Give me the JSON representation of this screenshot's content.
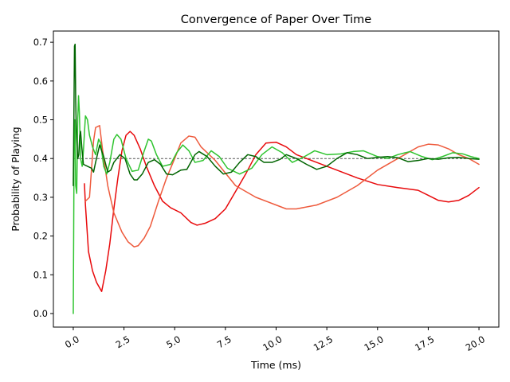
{
  "chart_data": {
    "type": "line",
    "title": "Convergence of Paper Over Time",
    "xlabel": "Time (ms)",
    "ylabel": "Probability of Playing",
    "xlim": [
      -0.98,
      20.98
    ],
    "ylim": [
      -0.035,
      0.729
    ],
    "x_ticks": [
      0.0,
      2.5,
      5.0,
      7.5,
      10.0,
      12.5,
      15.0,
      17.5,
      20.0
    ],
    "x_tick_labels": [
      "0.0",
      "2.5",
      "5.0",
      "7.5",
      "10.0",
      "12.5",
      "15.0",
      "17.5",
      "20.0"
    ],
    "y_ticks": [
      0.0,
      0.1,
      0.2,
      0.3,
      0.4,
      0.5,
      0.6,
      0.7
    ],
    "y_tick_labels": [
      "0.0",
      "0.1",
      "0.2",
      "0.3",
      "0.4",
      "0.5",
      "0.6",
      "0.7"
    ],
    "grid": false,
    "legend": false,
    "reference_line": {
      "y": 0.4,
      "color": "#555555",
      "style": "dashed"
    },
    "series": [
      {
        "color": "#e8090b",
        "points": [
          [
            0.55,
            0.335
          ],
          [
            0.6,
            0.28
          ],
          [
            0.75,
            0.16
          ],
          [
            0.95,
            0.11
          ],
          [
            1.15,
            0.08
          ],
          [
            1.4,
            0.057
          ],
          [
            1.6,
            0.11
          ],
          [
            1.8,
            0.18
          ],
          [
            2.0,
            0.27
          ],
          [
            2.2,
            0.35
          ],
          [
            2.4,
            0.42
          ],
          [
            2.6,
            0.46
          ],
          [
            2.8,
            0.47
          ],
          [
            3.0,
            0.46
          ],
          [
            3.3,
            0.425
          ],
          [
            3.6,
            0.38
          ],
          [
            4.0,
            0.33
          ],
          [
            4.4,
            0.29
          ],
          [
            4.8,
            0.273
          ],
          [
            5.3,
            0.26
          ],
          [
            5.8,
            0.235
          ],
          [
            6.1,
            0.228
          ],
          [
            6.5,
            0.233
          ],
          [
            7.0,
            0.245
          ],
          [
            7.5,
            0.27
          ],
          [
            8.0,
            0.315
          ],
          [
            8.5,
            0.36
          ],
          [
            9.0,
            0.41
          ],
          [
            9.5,
            0.44
          ],
          [
            10.0,
            0.442
          ],
          [
            10.5,
            0.43
          ],
          [
            11.0,
            0.41
          ],
          [
            12.0,
            0.39
          ],
          [
            13.0,
            0.37
          ],
          [
            14.0,
            0.35
          ],
          [
            15.0,
            0.333
          ],
          [
            16.0,
            0.325
          ],
          [
            17.0,
            0.318
          ],
          [
            17.5,
            0.305
          ],
          [
            18.0,
            0.292
          ],
          [
            18.5,
            0.288
          ],
          [
            19.0,
            0.292
          ],
          [
            19.5,
            0.305
          ],
          [
            20.0,
            0.325
          ]
        ]
      },
      {
        "color": "#ee5a3c",
        "points": [
          [
            0.6,
            0.29
          ],
          [
            0.8,
            0.3
          ],
          [
            1.0,
            0.445
          ],
          [
            1.1,
            0.48
          ],
          [
            1.3,
            0.485
          ],
          [
            1.45,
            0.42
          ],
          [
            1.7,
            0.33
          ],
          [
            2.0,
            0.26
          ],
          [
            2.4,
            0.21
          ],
          [
            2.7,
            0.185
          ],
          [
            3.0,
            0.172
          ],
          [
            3.2,
            0.175
          ],
          [
            3.5,
            0.195
          ],
          [
            3.8,
            0.225
          ],
          [
            4.2,
            0.29
          ],
          [
            4.6,
            0.35
          ],
          [
            5.0,
            0.4
          ],
          [
            5.3,
            0.44
          ],
          [
            5.7,
            0.458
          ],
          [
            6.0,
            0.455
          ],
          [
            6.3,
            0.43
          ],
          [
            7.0,
            0.395
          ],
          [
            8.0,
            0.33
          ],
          [
            9.0,
            0.3
          ],
          [
            10.0,
            0.28
          ],
          [
            10.5,
            0.27
          ],
          [
            11.0,
            0.27
          ],
          [
            12.0,
            0.28
          ],
          [
            13.0,
            0.3
          ],
          [
            14.0,
            0.33
          ],
          [
            15.0,
            0.37
          ],
          [
            16.0,
            0.4
          ],
          [
            17.0,
            0.43
          ],
          [
            17.5,
            0.437
          ],
          [
            18.0,
            0.435
          ],
          [
            18.5,
            0.425
          ],
          [
            19.0,
            0.41
          ],
          [
            19.5,
            0.4
          ],
          [
            20.0,
            0.385
          ]
        ]
      },
      {
        "color": "#2fc42f",
        "points": [
          [
            0.0,
            0.0
          ],
          [
            0.02,
            0.2
          ],
          [
            0.04,
            0.43
          ],
          [
            0.08,
            0.5
          ],
          [
            0.12,
            0.33
          ],
          [
            0.17,
            0.31
          ],
          [
            0.22,
            0.5
          ],
          [
            0.26,
            0.562
          ],
          [
            0.3,
            0.52
          ],
          [
            0.36,
            0.4
          ],
          [
            0.44,
            0.38
          ],
          [
            0.5,
            0.42
          ],
          [
            0.6,
            0.51
          ],
          [
            0.7,
            0.5
          ],
          [
            0.8,
            0.46
          ],
          [
            0.95,
            0.43
          ],
          [
            1.1,
            0.41
          ],
          [
            1.25,
            0.45
          ],
          [
            1.35,
            0.44
          ],
          [
            1.5,
            0.38
          ],
          [
            1.65,
            0.36
          ],
          [
            1.8,
            0.39
          ],
          [
            2.0,
            0.45
          ],
          [
            2.15,
            0.462
          ],
          [
            2.35,
            0.45
          ],
          [
            2.6,
            0.4
          ],
          [
            2.9,
            0.367
          ],
          [
            3.2,
            0.37
          ],
          [
            3.5,
            0.42
          ],
          [
            3.7,
            0.45
          ],
          [
            3.85,
            0.445
          ],
          [
            4.1,
            0.41
          ],
          [
            4.4,
            0.38
          ],
          [
            4.8,
            0.385
          ],
          [
            5.1,
            0.415
          ],
          [
            5.4,
            0.435
          ],
          [
            5.7,
            0.42
          ],
          [
            6.0,
            0.39
          ],
          [
            6.4,
            0.395
          ],
          [
            6.8,
            0.42
          ],
          [
            7.2,
            0.405
          ],
          [
            7.6,
            0.375
          ],
          [
            8.2,
            0.36
          ],
          [
            8.8,
            0.375
          ],
          [
            9.3,
            0.41
          ],
          [
            9.8,
            0.43
          ],
          [
            10.3,
            0.415
          ],
          [
            10.8,
            0.39
          ],
          [
            11.4,
            0.405
          ],
          [
            11.9,
            0.42
          ],
          [
            12.5,
            0.41
          ],
          [
            13.2,
            0.412
          ],
          [
            13.8,
            0.418
          ],
          [
            14.3,
            0.42
          ],
          [
            15.0,
            0.405
          ],
          [
            15.5,
            0.4
          ],
          [
            16.0,
            0.41
          ],
          [
            16.6,
            0.418
          ],
          [
            17.2,
            0.405
          ],
          [
            17.7,
            0.397
          ],
          [
            18.2,
            0.405
          ],
          [
            18.7,
            0.415
          ],
          [
            19.2,
            0.412
          ],
          [
            19.6,
            0.405
          ],
          [
            20.0,
            0.4
          ]
        ]
      },
      {
        "color": "#006400",
        "points": [
          [
            0.0,
            0.33
          ],
          [
            0.03,
            0.5
          ],
          [
            0.06,
            0.69
          ],
          [
            0.09,
            0.695
          ],
          [
            0.12,
            0.55
          ],
          [
            0.15,
            0.47
          ],
          [
            0.18,
            0.44
          ],
          [
            0.22,
            0.4
          ],
          [
            0.27,
            0.41
          ],
          [
            0.32,
            0.46
          ],
          [
            0.36,
            0.47
          ],
          [
            0.42,
            0.43
          ],
          [
            0.5,
            0.385
          ],
          [
            0.7,
            0.38
          ],
          [
            0.9,
            0.375
          ],
          [
            1.0,
            0.365
          ],
          [
            1.1,
            0.39
          ],
          [
            1.3,
            0.435
          ],
          [
            1.5,
            0.405
          ],
          [
            1.7,
            0.365
          ],
          [
            1.85,
            0.37
          ],
          [
            2.0,
            0.39
          ],
          [
            2.3,
            0.41
          ],
          [
            2.55,
            0.4
          ],
          [
            2.8,
            0.36
          ],
          [
            3.0,
            0.345
          ],
          [
            3.15,
            0.345
          ],
          [
            3.4,
            0.36
          ],
          [
            3.7,
            0.39
          ],
          [
            4.0,
            0.397
          ],
          [
            4.3,
            0.385
          ],
          [
            4.6,
            0.36
          ],
          [
            4.9,
            0.358
          ],
          [
            5.3,
            0.37
          ],
          [
            5.6,
            0.372
          ],
          [
            6.0,
            0.41
          ],
          [
            6.2,
            0.418
          ],
          [
            6.6,
            0.405
          ],
          [
            7.0,
            0.38
          ],
          [
            7.4,
            0.36
          ],
          [
            7.8,
            0.365
          ],
          [
            8.2,
            0.39
          ],
          [
            8.6,
            0.41
          ],
          [
            9.0,
            0.405
          ],
          [
            9.4,
            0.39
          ],
          [
            9.8,
            0.39
          ],
          [
            10.2,
            0.398
          ],
          [
            10.5,
            0.41
          ],
          [
            11.0,
            0.4
          ],
          [
            11.5,
            0.385
          ],
          [
            12.0,
            0.372
          ],
          [
            12.5,
            0.38
          ],
          [
            13.0,
            0.4
          ],
          [
            13.5,
            0.415
          ],
          [
            14.0,
            0.41
          ],
          [
            14.5,
            0.4
          ],
          [
            15.0,
            0.403
          ],
          [
            15.5,
            0.405
          ],
          [
            16.0,
            0.402
          ],
          [
            16.5,
            0.392
          ],
          [
            17.0,
            0.395
          ],
          [
            17.5,
            0.4
          ],
          [
            18.0,
            0.398
          ],
          [
            18.5,
            0.402
          ],
          [
            19.0,
            0.403
          ],
          [
            19.5,
            0.4
          ],
          [
            20.0,
            0.398
          ]
        ]
      }
    ]
  }
}
